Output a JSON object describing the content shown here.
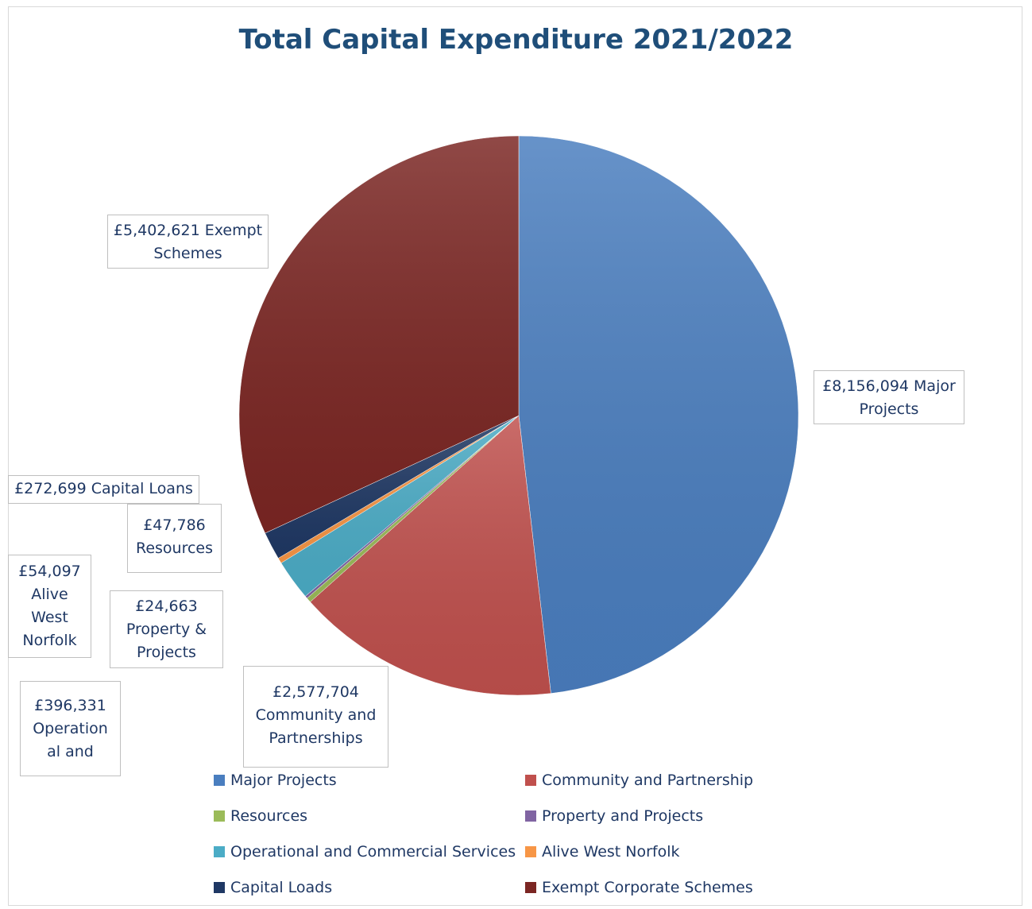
{
  "chart_data": {
    "type": "pie",
    "title": "Total Capital Expenditure 2021/2022",
    "slices": [
      {
        "label": "Major Projects",
        "value": 8156094,
        "color": "#4a7ebf"
      },
      {
        "label": "Community and Partnership",
        "value": 2577704,
        "color": "#c0504d"
      },
      {
        "label": "Resources",
        "value": 47786,
        "color": "#9bbb59"
      },
      {
        "label": "Property and Projects",
        "value": 24663,
        "color": "#8064a2"
      },
      {
        "label": "Operational and Commercial Services",
        "value": 396331,
        "color": "#4bacc6"
      },
      {
        "label": "Alive West Norfolk",
        "value": 54097,
        "color": "#f79646"
      },
      {
        "label": "Capital Loads",
        "value": 272699,
        "color": "#1f3864"
      },
      {
        "label": "Exempt Corporate Schemes",
        "value": 5402621,
        "color": "#7b2623"
      }
    ],
    "data_labels": [
      {
        "line1": "£8,156,094 Major",
        "line2": "Projects",
        "line3": ""
      },
      {
        "line1": "£2,577,704",
        "line2": "Community and",
        "line3": "Partnerships"
      },
      {
        "line1": "£47,786",
        "line2": "Resources",
        "line3": ""
      },
      {
        "line1": "£24,663",
        "line2": "Property &",
        "line3": "Projects"
      },
      {
        "line1": "£396,331",
        "line2": "Operation",
        "line3": "al and"
      },
      {
        "line1": "£54,097",
        "line2": "Alive",
        "line3": "West",
        "line4": "Norfolk"
      },
      {
        "line1": "£272,699 Capital Loans",
        "line2": "",
        "line3": ""
      },
      {
        "line1": "£5,402,621 Exempt",
        "line2": "Schemes",
        "line3": ""
      }
    ],
    "legend_position": "bottom"
  }
}
